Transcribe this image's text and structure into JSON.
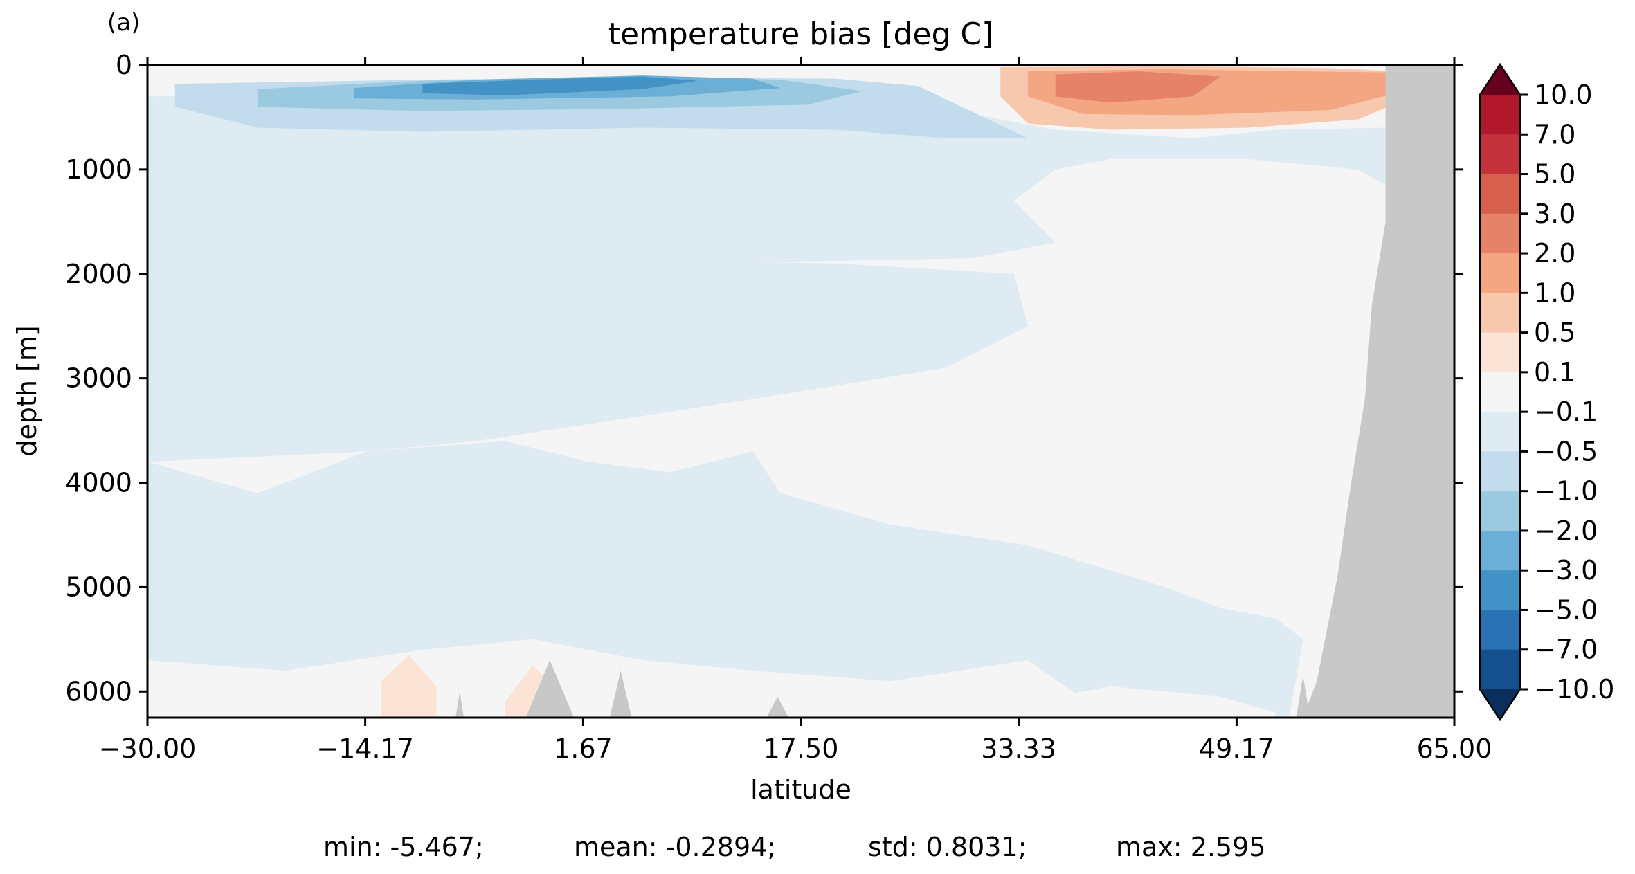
{
  "panel_label": "(a)",
  "stats": {
    "min": "min: -5.467;",
    "mean": "mean: -0.2894;",
    "std": "std: 0.8031;",
    "max": "max: 2.595"
  },
  "chart_data": {
    "type": "heatmap",
    "title": "temperature bias [deg C]",
    "xlabel": "latitude",
    "ylabel": "depth [m]",
    "xlim": [
      -30,
      65
    ],
    "ylim": [
      6250,
      0
    ],
    "x_ticks": [
      "−30.00",
      "−14.17",
      "1.67",
      "17.50",
      "33.33",
      "49.17",
      "65.00"
    ],
    "x_tick_values": [
      -30,
      -14.17,
      1.67,
      17.5,
      33.33,
      49.17,
      65
    ],
    "y_ticks": [
      "0",
      "1000",
      "2000",
      "3000",
      "4000",
      "5000",
      "6000"
    ],
    "y_tick_values": [
      0,
      1000,
      2000,
      3000,
      4000,
      5000,
      6000
    ],
    "colorbar": {
      "extend": "both",
      "levels": [
        "10.0",
        "7.0",
        "5.0",
        "3.0",
        "2.0",
        "1.0",
        "0.5",
        "0.1",
        "−0.1",
        "−0.5",
        "−1.0",
        "−2.0",
        "−3.0",
        "−5.0",
        "−7.0",
        "−10.0"
      ],
      "colors": [
        "#b2182b",
        "#c4323c",
        "#d6604d",
        "#e58268",
        "#f4a582",
        "#f8c8ae",
        "#fbe3d6",
        "#f4f5f4",
        "#deebf2",
        "#c2dced",
        "#9bc9e0",
        "#6baed6",
        "#4292c6",
        "#2b72b4",
        "#15508e"
      ],
      "over_color": "#67001f",
      "under_color": "#0b2f5c"
    },
    "land_color": "#c8c8c8",
    "regions": [
      {
        "level": "-0.1 to 0.1",
        "lat": [
          -30,
          65
        ],
        "depth": [
          0,
          6250
        ]
      },
      {
        "level": "-0.5 to -0.1",
        "lat": [
          -30,
          62
        ],
        "depth": [
          300,
          1850
        ]
      },
      {
        "level": "-1.0 to -0.5",
        "lat": [
          -28,
          25
        ],
        "depth": [
          150,
          700
        ]
      },
      {
        "level": "-2.0 to -1.0",
        "lat": [
          -22,
          15
        ],
        "depth": [
          100,
          450
        ]
      },
      {
        "level": "-3.0 to -2.0",
        "lat": [
          -15,
          16
        ],
        "depth": [
          80,
          350
        ]
      },
      {
        "level": "-5.0 to -3.0",
        "lat": [
          -10,
          6
        ],
        "depth": [
          120,
          320
        ]
      },
      {
        "level": "0.5 to 1.0",
        "lat": [
          32,
          62
        ],
        "depth": [
          0,
          600
        ]
      },
      {
        "level": "1.0 to 2.0",
        "lat": [
          34,
          61
        ],
        "depth": [
          30,
          450
        ]
      },
      {
        "level": "2.0 to 3.0",
        "lat": [
          36,
          48
        ],
        "depth": [
          60,
          360
        ]
      }
    ]
  }
}
